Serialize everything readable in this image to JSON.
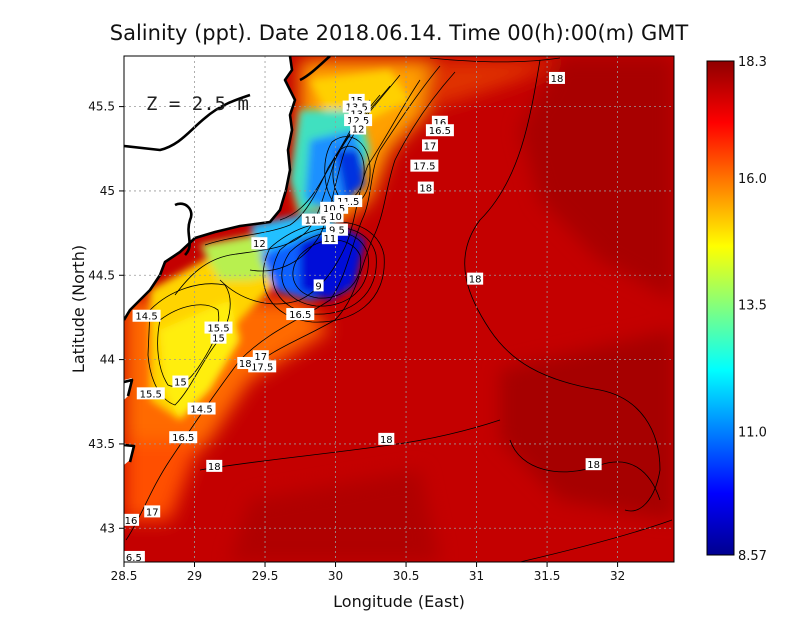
{
  "chart_data": {
    "type": "heatmap",
    "title": "Salinity (ppt). Date 2018.06.14. Time 00(h):00(m) GMT",
    "xlabel": "Longitude (East)",
    "ylabel": "Latitude (North)",
    "xlim": [
      28.5,
      32.4
    ],
    "ylim": [
      42.8,
      45.8
    ],
    "x_ticks": [
      "28.5",
      "29",
      "29.5",
      "30",
      "30.5",
      "31",
      "31.5",
      "32"
    ],
    "x_tick_values": [
      28.5,
      29,
      29.5,
      30,
      30.5,
      31,
      31.5,
      32
    ],
    "y_ticks": [
      "43",
      "43.5",
      "44",
      "44.5",
      "45",
      "45.5"
    ],
    "y_tick_values": [
      43,
      43.5,
      44,
      44.5,
      45,
      45.5
    ],
    "grid": true,
    "annotation": "Z = 2.5 m",
    "colorbar": {
      "min": 8.57,
      "max": 18.3,
      "tick_labels": [
        "18.3",
        "16.0",
        "13.5",
        "11.0",
        "8.57"
      ],
      "tick_values": [
        18.3,
        16.0,
        13.5,
        11.0,
        8.57
      ],
      "colors": [
        "#00008f",
        "#0000ff",
        "#0080ff",
        "#00ffff",
        "#80ff80",
        "#ffff00",
        "#ff8000",
        "#ff0000",
        "#8f0000"
      ]
    },
    "contour_labels": [
      {
        "text": "18",
        "lon": 31.57,
        "lat": 45.67,
        "value": 18
      },
      {
        "text": "15",
        "lon": 30.15,
        "lat": 45.54,
        "value": 15
      },
      {
        "text": "13.5",
        "lon": 30.15,
        "lat": 45.5,
        "value": 13.5
      },
      {
        "text": "13",
        "lon": 30.15,
        "lat": 45.46,
        "value": 13
      },
      {
        "text": "12.5",
        "lon": 30.16,
        "lat": 45.42,
        "value": 12.5
      },
      {
        "text": "12",
        "lon": 30.16,
        "lat": 45.37,
        "value": 12
      },
      {
        "text": "16",
        "lon": 30.74,
        "lat": 45.41,
        "value": 16
      },
      {
        "text": "16.5",
        "lon": 30.74,
        "lat": 45.36,
        "value": 16.5
      },
      {
        "text": "17",
        "lon": 30.67,
        "lat": 45.27,
        "value": 17
      },
      {
        "text": "17.5",
        "lon": 30.63,
        "lat": 45.15,
        "value": 17.5
      },
      {
        "text": "18",
        "lon": 30.64,
        "lat": 45.02,
        "value": 18
      },
      {
        "text": "11.5",
        "lon": 30.09,
        "lat": 44.94,
        "value": 11.5
      },
      {
        "text": "10.5",
        "lon": 29.99,
        "lat": 44.9,
        "value": 10.5
      },
      {
        "text": "10",
        "lon": 30.0,
        "lat": 44.85,
        "value": 10
      },
      {
        "text": "11.5",
        "lon": 29.86,
        "lat": 44.83,
        "value": 11.5
      },
      {
        "text": "9.5",
        "lon": 30.01,
        "lat": 44.77,
        "value": 9.5
      },
      {
        "text": "11",
        "lon": 29.96,
        "lat": 44.72,
        "value": 11
      },
      {
        "text": "12",
        "lon": 29.46,
        "lat": 44.69,
        "value": 12
      },
      {
        "text": "9",
        "lon": 29.88,
        "lat": 44.44,
        "value": 9
      },
      {
        "text": "18",
        "lon": 30.99,
        "lat": 44.48,
        "value": 18
      },
      {
        "text": "14.5",
        "lon": 28.66,
        "lat": 44.26,
        "value": 14.5
      },
      {
        "text": "15.5",
        "lon": 29.17,
        "lat": 44.19,
        "value": 15.5
      },
      {
        "text": "15",
        "lon": 29.17,
        "lat": 44.13,
        "value": 15
      },
      {
        "text": "16.5",
        "lon": 29.75,
        "lat": 44.27,
        "value": 16.5
      },
      {
        "text": "17",
        "lon": 29.47,
        "lat": 44.02,
        "value": 17
      },
      {
        "text": "17.5",
        "lon": 29.48,
        "lat": 43.96,
        "value": 17.5
      },
      {
        "text": "18",
        "lon": 29.36,
        "lat": 43.98,
        "value": 18
      },
      {
        "text": "15",
        "lon": 28.9,
        "lat": 43.87,
        "value": 15
      },
      {
        "text": "15.5",
        "lon": 28.69,
        "lat": 43.8,
        "value": 15.5
      },
      {
        "text": "14.5",
        "lon": 29.05,
        "lat": 43.71,
        "value": 14.5
      },
      {
        "text": "16.5",
        "lon": 28.92,
        "lat": 43.54,
        "value": 16.5
      },
      {
        "text": "18",
        "lon": 30.36,
        "lat": 43.53,
        "value": 18
      },
      {
        "text": "18",
        "lon": 29.14,
        "lat": 43.37,
        "value": 18
      },
      {
        "text": "18",
        "lon": 31.83,
        "lat": 43.38,
        "value": 18
      },
      {
        "text": "17",
        "lon": 28.7,
        "lat": 43.1,
        "value": 17
      },
      {
        "text": "16",
        "lon": 28.55,
        "lat": 43.05,
        "value": 16
      },
      {
        "text": "6.5",
        "lon": 28.57,
        "lat": 42.83,
        "value": 6.5
      }
    ]
  }
}
